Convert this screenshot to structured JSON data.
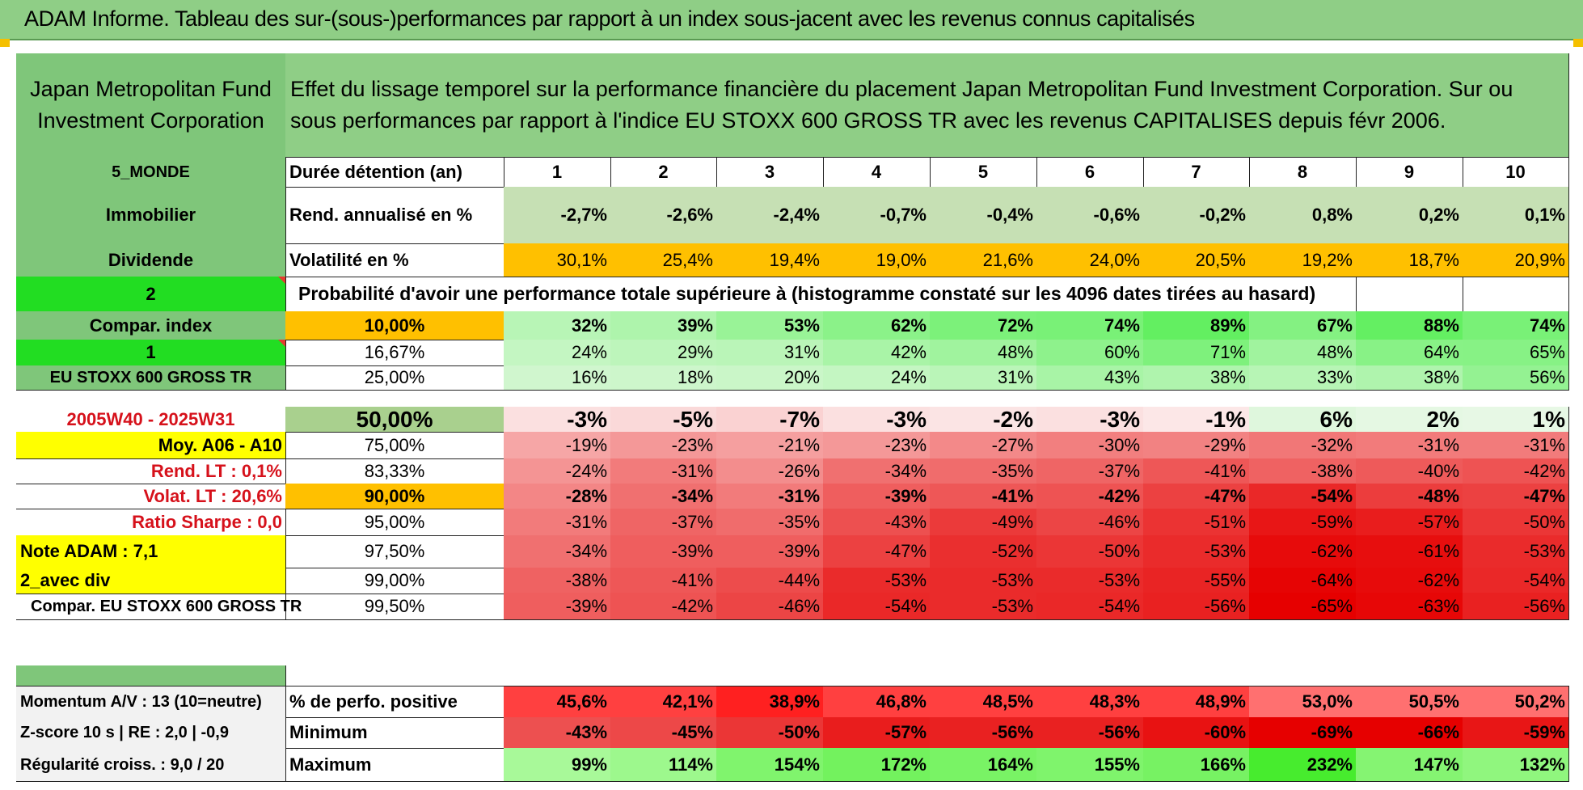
{
  "title": "ADAM Informe. Tableau des sur-(sous-)performances par rapport à un index sous-jacent avec les revenus connus capitalisés",
  "header": {
    "fund_name": "Japan Metropolitan Fund Investment Corporation",
    "description": "Effet du lissage temporel sur la performance financière du placement Japan Metropolitan Fund Investment Corporation. Sur ou sous performances par rapport à l'indice EU STOXX 600 GROSS TR avec les revenus CAPITALISES depuis févr 2006."
  },
  "left_panel": {
    "zone": "5_MONDE",
    "sector": "Immobilier",
    "dividend": "Dividende",
    "selector_1": "2",
    "compar_label": "Compar. index",
    "selector_2": "1",
    "index_name": "EU STOXX 600 GROSS TR",
    "period": "2005W40 - 2025W31",
    "avg": "Moy. A06 - A10",
    "rend_lt": "Rend. LT :    0,1%",
    "volat_lt": "Volat. LT :    20,6%",
    "sharpe": "Ratio Sharpe :    0,0",
    "note": "Note ADAM : 7,1",
    "div_mode": "2_avec div",
    "compar_full": "Compar. EU STOXX 600 GROSS TR",
    "momentum": "Momentum A/V : 13 (10=neutre)",
    "zscore": "Z-score 10 s | RE : 2,0 | -0,9",
    "regularite": "Régularité croiss. : 9,0 / 20"
  },
  "stats": {
    "duree_label": "Durée détention (an)",
    "years": [
      "1",
      "2",
      "3",
      "4",
      "5",
      "6",
      "7",
      "8",
      "9",
      "10"
    ],
    "rend_label": "Rend. annualisé en %",
    "rend": [
      "-2,7%",
      "-2,6%",
      "-2,4%",
      "-0,7%",
      "-0,4%",
      "-0,6%",
      "-0,2%",
      "0,8%",
      "0,2%",
      "0,1%"
    ],
    "vol_label": "Volatilité en %",
    "vol": [
      "30,1%",
      "25,4%",
      "19,4%",
      "19,0%",
      "21,6%",
      "24,0%",
      "20,5%",
      "19,2%",
      "18,7%",
      "20,9%"
    ],
    "prob_label": "Probabilité d'avoir une performance totale supérieure à (histogramme constaté sur les 4096 dates tirées au hasard)"
  },
  "prob_rows": [
    {
      "level": "10,00%",
      "values": [
        "32%",
        "39%",
        "53%",
        "62%",
        "72%",
        "74%",
        "89%",
        "67%",
        "88%",
        "74%"
      ]
    },
    {
      "level": "16,67%",
      "values": [
        "24%",
        "29%",
        "31%",
        "42%",
        "48%",
        "60%",
        "71%",
        "48%",
        "64%",
        "65%"
      ]
    },
    {
      "level": "25,00%",
      "values": [
        "16%",
        "18%",
        "20%",
        "24%",
        "31%",
        "43%",
        "38%",
        "33%",
        "38%",
        "56%"
      ]
    },
    {
      "level": "50,00%",
      "values": [
        "-3%",
        "-5%",
        "-7%",
        "-3%",
        "-2%",
        "-3%",
        "-1%",
        "6%",
        "2%",
        "1%"
      ]
    },
    {
      "level": "75,00%",
      "values": [
        "-19%",
        "-23%",
        "-21%",
        "-23%",
        "-27%",
        "-30%",
        "-29%",
        "-32%",
        "-31%",
        "-31%"
      ]
    },
    {
      "level": "83,33%",
      "values": [
        "-24%",
        "-31%",
        "-26%",
        "-34%",
        "-35%",
        "-37%",
        "-41%",
        "-38%",
        "-40%",
        "-42%"
      ]
    },
    {
      "level": "90,00%",
      "values": [
        "-28%",
        "-34%",
        "-31%",
        "-39%",
        "-41%",
        "-42%",
        "-47%",
        "-54%",
        "-48%",
        "-47%"
      ]
    },
    {
      "level": "95,00%",
      "values": [
        "-31%",
        "-37%",
        "-35%",
        "-43%",
        "-49%",
        "-46%",
        "-51%",
        "-59%",
        "-57%",
        "-50%"
      ]
    },
    {
      "level": "97,50%",
      "values": [
        "-34%",
        "-39%",
        "-39%",
        "-47%",
        "-52%",
        "-50%",
        "-53%",
        "-62%",
        "-61%",
        "-53%"
      ]
    },
    {
      "level": "99,00%",
      "values": [
        "-38%",
        "-41%",
        "-44%",
        "-53%",
        "-53%",
        "-53%",
        "-55%",
        "-64%",
        "-62%",
        "-54%"
      ]
    },
    {
      "level": "99,50%",
      "values": [
        "-39%",
        "-42%",
        "-46%",
        "-54%",
        "-53%",
        "-54%",
        "-56%",
        "-65%",
        "-63%",
        "-56%"
      ]
    }
  ],
  "summary_rows": [
    {
      "label": "% de perfo. positive",
      "values": [
        "45,6%",
        "42,1%",
        "38,9%",
        "46,8%",
        "48,5%",
        "48,3%",
        "48,9%",
        "53,0%",
        "50,5%",
        "50,2%"
      ]
    },
    {
      "label": "Minimum",
      "values": [
        "-43%",
        "-45%",
        "-50%",
        "-57%",
        "-56%",
        "-56%",
        "-60%",
        "-69%",
        "-66%",
        "-59%"
      ]
    },
    {
      "label": "Maximum",
      "values": [
        "99%",
        "114%",
        "154%",
        "172%",
        "164%",
        "155%",
        "166%",
        "232%",
        "147%",
        "132%"
      ]
    }
  ],
  "colors": {
    "header_green": "#8fce86",
    "label_green": "#7fc67a",
    "bright_green": "#22dd22",
    "orange": "#ffc000",
    "yellow": "#ffff00",
    "red_text": "#d6111b"
  }
}
